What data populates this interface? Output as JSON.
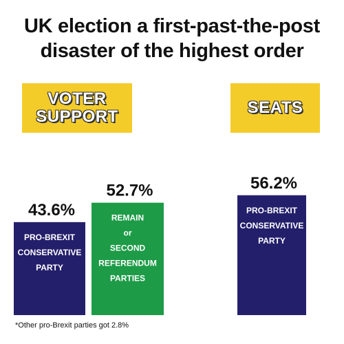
{
  "title_lines": [
    "UK election a first-past-the-post",
    "disaster of the highest order"
  ],
  "headers": {
    "voter_support": [
      "VOTER",
      "SUPPORT"
    ],
    "seats": [
      "SEATS"
    ]
  },
  "footnote": "*Other pro-Brexit parties  got 2.8%",
  "colors": {
    "navy": "#241f6b",
    "green": "#1d9b47",
    "yellow": "#f4cc2a"
  },
  "chart_data": {
    "type": "bar",
    "panels": [
      {
        "name": "VOTER SUPPORT",
        "bars": [
          {
            "label": [
              "PRO-BREXIT",
              "CONSERVATIVE",
              "PARTY"
            ],
            "value": 43.6,
            "value_label": "43.6%",
            "color": "#241f6b"
          },
          {
            "label": [
              "REMAIN",
              "or",
              "SECOND",
              "REFERENDUM",
              "PARTIES"
            ],
            "value": 52.7,
            "value_label": "52.7%",
            "color": "#1d9b47"
          }
        ]
      },
      {
        "name": "SEATS",
        "bars": [
          {
            "label": [
              "PRO-BREXIT",
              "CONSERVATIVE",
              "PARTY"
            ],
            "value": 56.2,
            "value_label": "56.2%",
            "color": "#241f6b"
          }
        ]
      }
    ]
  }
}
